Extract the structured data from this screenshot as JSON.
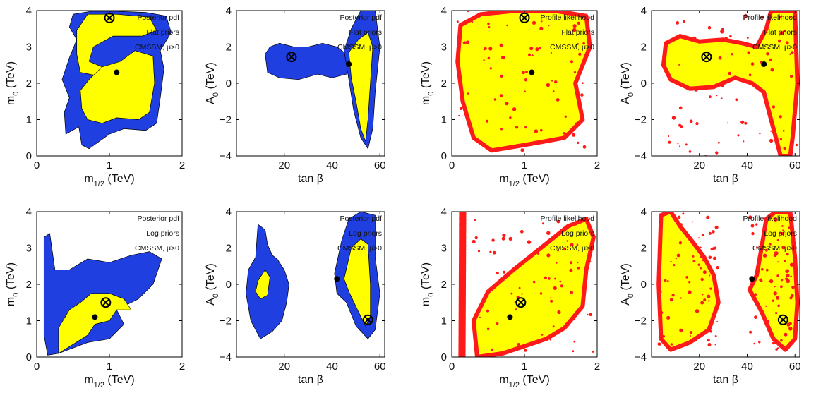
{
  "figure": {
    "colors": {
      "blue": "#1f3fe0",
      "yellow": "#ffff00",
      "red": "#ff1a1a",
      "frame": "#000000",
      "marker": "#000000"
    }
  },
  "chart_data": [
    {
      "type": "contour",
      "id": "p1",
      "xlabel": "m_1/2 (TeV)",
      "ylabel": "m_0 (TeV)",
      "xlim": [
        0,
        2
      ],
      "ylim": [
        0,
        4
      ],
      "xticks": [
        0,
        1,
        2
      ],
      "yticks": [
        0,
        1,
        2,
        3,
        4
      ],
      "annotations": [
        "Posterior pdf",
        "Flat priors",
        "CMSSM, μ>0"
      ],
      "contour_style": "posterior",
      "best_fit_point": [
        1.0,
        3.8
      ],
      "posterior_mean": [
        1.1,
        2.3
      ]
    },
    {
      "type": "contour",
      "id": "p2",
      "xlabel": "tan β",
      "ylabel": "A_0 (TeV)",
      "xlim": [
        0,
        62
      ],
      "ylim": [
        -4,
        4
      ],
      "xticks": [
        20,
        40,
        60
      ],
      "yticks": [
        -4,
        -2,
        0,
        2,
        4
      ],
      "annotations": [
        "Posterior pdf",
        "Flat priors",
        "CMSSM, μ>0"
      ],
      "contour_style": "posterior",
      "best_fit_point": [
        23,
        1.45
      ],
      "posterior_mean": [
        47,
        1.05
      ]
    },
    {
      "type": "contour",
      "id": "p3",
      "xlabel": "m_1/2 (TeV)",
      "ylabel": "m_0 (TeV)",
      "xlim": [
        0,
        2
      ],
      "ylim": [
        0,
        4
      ],
      "xticks": [
        0,
        1,
        2
      ],
      "yticks": [
        0,
        1,
        2,
        3,
        4
      ],
      "annotations": [
        "Profile likelihood",
        "Flat priors",
        "CMSSM, μ>0"
      ],
      "contour_style": "profile",
      "best_fit_point": [
        1.0,
        3.8
      ],
      "posterior_mean": [
        1.1,
        2.3
      ]
    },
    {
      "type": "contour",
      "id": "p4",
      "xlabel": "tan β",
      "ylabel": "A_0 (TeV)",
      "xlim": [
        0,
        62
      ],
      "ylim": [
        -4,
        4
      ],
      "xticks": [
        20,
        40,
        60
      ],
      "yticks": [
        -4,
        -2,
        0,
        2,
        4
      ],
      "annotations": [
        "Profile likelihood",
        "Flat priors",
        "CMSSM, μ>0"
      ],
      "contour_style": "profile",
      "best_fit_point": [
        23,
        1.45
      ],
      "posterior_mean": [
        47,
        1.05
      ]
    },
    {
      "type": "contour",
      "id": "p5",
      "xlabel": "m_1/2 (TeV)",
      "ylabel": "m_0 (TeV)",
      "xlim": [
        0,
        2
      ],
      "ylim": [
        0,
        4
      ],
      "xticks": [
        0,
        1,
        2
      ],
      "yticks": [
        0,
        1,
        2,
        3,
        4
      ],
      "annotations": [
        "Posterior pdf",
        "Log priors",
        "CMSSM, μ>0"
      ],
      "contour_style": "posterior",
      "best_fit_point": [
        0.95,
        1.5
      ],
      "posterior_mean": [
        0.8,
        1.1
      ]
    },
    {
      "type": "contour",
      "id": "p6",
      "xlabel": "tan β",
      "ylabel": "A_0 (TeV)",
      "xlim": [
        0,
        62
      ],
      "ylim": [
        -4,
        4
      ],
      "xticks": [
        20,
        40,
        60
      ],
      "yticks": [
        -4,
        -2,
        0,
        2,
        4
      ],
      "annotations": [
        "Posterior pdf",
        "Log priors",
        "CMSSM, μ>0"
      ],
      "contour_style": "posterior",
      "best_fit_point": [
        55,
        -1.95
      ],
      "posterior_mean": [
        42,
        0.3
      ]
    },
    {
      "type": "contour",
      "id": "p7",
      "xlabel": "m_1/2 (TeV)",
      "ylabel": "m_0 (TeV)",
      "xlim": [
        0,
        2
      ],
      "ylim": [
        0,
        4
      ],
      "xticks": [
        0,
        1,
        2
      ],
      "yticks": [
        0,
        1,
        2,
        3,
        4
      ],
      "annotations": [
        "Profile likelihood",
        "Log priors",
        "CMSSM, μ>0"
      ],
      "contour_style": "profile",
      "best_fit_point": [
        0.95,
        1.5
      ],
      "posterior_mean": [
        0.8,
        1.1
      ]
    },
    {
      "type": "contour",
      "id": "p8",
      "xlabel": "tan β",
      "ylabel": "A_0 (TeV)",
      "xlim": [
        0,
        62
      ],
      "ylim": [
        -4,
        4
      ],
      "xticks": [
        20,
        40,
        60
      ],
      "yticks": [
        -4,
        -2,
        0,
        2,
        4
      ],
      "annotations": [
        "Profile likelihood",
        "Log priors",
        "CMSSM, μ>0"
      ],
      "contour_style": "profile",
      "best_fit_point": [
        55,
        -1.95
      ],
      "posterior_mean": [
        42,
        0.3
      ]
    }
  ]
}
